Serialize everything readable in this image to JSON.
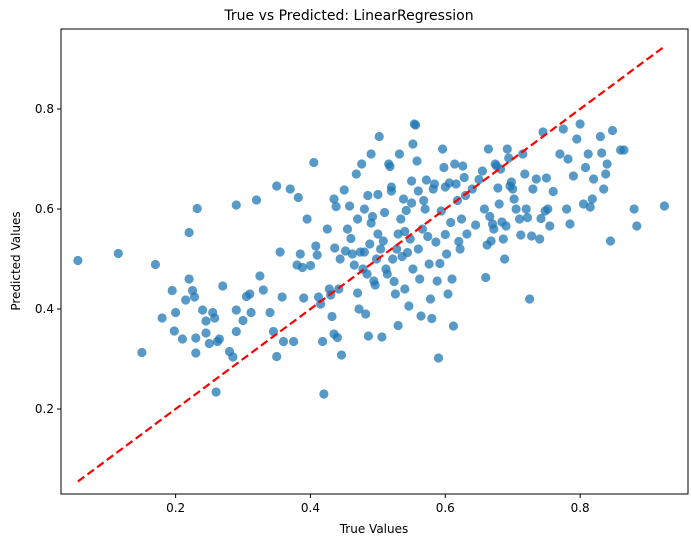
{
  "chart_data": {
    "type": "scatter",
    "title": "True vs Predicted: LinearRegression",
    "xlabel": "True Values",
    "ylabel": "Predicted Values",
    "xlim": [
      0.03,
      0.96
    ],
    "ylim": [
      0.03,
      0.96
    ],
    "xticks": [
      0.2,
      0.4,
      0.6,
      0.8
    ],
    "yticks": [
      0.2,
      0.4,
      0.6,
      0.8
    ],
    "xtick_labels": [
      "0.2",
      "0.4",
      "0.6",
      "0.8"
    ],
    "ytick_labels": [
      "0.2",
      "0.4",
      "0.6",
      "0.8"
    ],
    "grid": false,
    "point_color": "#1f77b4",
    "point_alpha": 0.75,
    "reference_line": {
      "style": "dashed",
      "color": "#ff0000",
      "from": [
        0.055,
        0.055
      ],
      "to": [
        0.925,
        0.925
      ]
    },
    "points": [
      [
        0.055,
        0.497
      ],
      [
        0.115,
        0.511
      ],
      [
        0.15,
        0.313
      ],
      [
        0.17,
        0.489
      ],
      [
        0.18,
        0.382
      ],
      [
        0.195,
        0.437
      ],
      [
        0.198,
        0.356
      ],
      [
        0.2,
        0.393
      ],
      [
        0.21,
        0.34
      ],
      [
        0.215,
        0.418
      ],
      [
        0.22,
        0.553
      ],
      [
        0.22,
        0.46
      ],
      [
        0.225,
        0.437
      ],
      [
        0.228,
        0.424
      ],
      [
        0.23,
        0.312
      ],
      [
        0.23,
        0.342
      ],
      [
        0.232,
        0.601
      ],
      [
        0.24,
        0.398
      ],
      [
        0.245,
        0.376
      ],
      [
        0.245,
        0.352
      ],
      [
        0.25,
        0.331
      ],
      [
        0.255,
        0.393
      ],
      [
        0.258,
        0.382
      ],
      [
        0.26,
        0.234
      ],
      [
        0.262,
        0.335
      ],
      [
        0.265,
        0.34
      ],
      [
        0.27,
        0.446
      ],
      [
        0.28,
        0.315
      ],
      [
        0.285,
        0.304
      ],
      [
        0.29,
        0.608
      ],
      [
        0.29,
        0.398
      ],
      [
        0.29,
        0.355
      ],
      [
        0.3,
        0.377
      ],
      [
        0.305,
        0.425
      ],
      [
        0.31,
        0.43
      ],
      [
        0.312,
        0.393
      ],
      [
        0.32,
        0.618
      ],
      [
        0.325,
        0.466
      ],
      [
        0.33,
        0.438
      ],
      [
        0.34,
        0.393
      ],
      [
        0.345,
        0.355
      ],
      [
        0.35,
        0.305
      ],
      [
        0.35,
        0.646
      ],
      [
        0.355,
        0.514
      ],
      [
        0.358,
        0.424
      ],
      [
        0.36,
        0.335
      ],
      [
        0.37,
        0.64
      ],
      [
        0.375,
        0.335
      ],
      [
        0.38,
        0.488
      ],
      [
        0.382,
        0.623
      ],
      [
        0.385,
        0.51
      ],
      [
        0.388,
        0.483
      ],
      [
        0.39,
        0.422
      ],
      [
        0.395,
        0.58
      ],
      [
        0.4,
        0.487
      ],
      [
        0.405,
        0.693
      ],
      [
        0.408,
        0.526
      ],
      [
        0.41,
        0.508
      ],
      [
        0.412,
        0.424
      ],
      [
        0.415,
        0.41
      ],
      [
        0.418,
        0.335
      ],
      [
        0.42,
        0.23
      ],
      [
        0.425,
        0.56
      ],
      [
        0.428,
        0.44
      ],
      [
        0.43,
        0.428
      ],
      [
        0.432,
        0.385
      ],
      [
        0.435,
        0.35
      ],
      [
        0.435,
        0.62
      ],
      [
        0.436,
        0.522
      ],
      [
        0.438,
        0.605
      ],
      [
        0.44,
        0.343
      ],
      [
        0.442,
        0.44
      ],
      [
        0.444,
        0.5
      ],
      [
        0.446,
        0.308
      ],
      [
        0.45,
        0.638
      ],
      [
        0.452,
        0.516
      ],
      [
        0.455,
        0.56
      ],
      [
        0.458,
        0.606
      ],
      [
        0.46,
        0.541
      ],
      [
        0.462,
        0.51
      ],
      [
        0.465,
        0.488
      ],
      [
        0.468,
        0.67
      ],
      [
        0.47,
        0.432
      ],
      [
        0.47,
        0.58
      ],
      [
        0.472,
        0.4
      ],
      [
        0.474,
        0.514
      ],
      [
        0.476,
        0.69
      ],
      [
        0.478,
        0.48
      ],
      [
        0.48,
        0.514
      ],
      [
        0.48,
        0.6
      ],
      [
        0.482,
        0.39
      ],
      [
        0.484,
        0.47
      ],
      [
        0.486,
        0.346
      ],
      [
        0.488,
        0.53
      ],
      [
        0.49,
        0.572
      ],
      [
        0.49,
        0.71
      ],
      [
        0.492,
        0.585
      ],
      [
        0.494,
        0.456
      ],
      [
        0.496,
        0.448
      ],
      [
        0.498,
        0.5
      ],
      [
        0.5,
        0.55
      ],
      [
        0.5,
        0.629
      ],
      [
        0.502,
        0.745
      ],
      [
        0.504,
        0.52
      ],
      [
        0.506,
        0.344
      ],
      [
        0.508,
        0.536
      ],
      [
        0.51,
        0.593
      ],
      [
        0.512,
        0.48
      ],
      [
        0.514,
        0.47
      ],
      [
        0.516,
        0.69
      ],
      [
        0.518,
        0.685
      ],
      [
        0.52,
        0.644
      ],
      [
        0.522,
        0.5
      ],
      [
        0.524,
        0.455
      ],
      [
        0.526,
        0.43
      ],
      [
        0.528,
        0.52
      ],
      [
        0.53,
        0.55
      ],
      [
        0.53,
        0.367
      ],
      [
        0.532,
        0.71
      ],
      [
        0.534,
        0.58
      ],
      [
        0.536,
        0.505
      ],
      [
        0.538,
        0.62
      ],
      [
        0.54,
        0.555
      ],
      [
        0.54,
        0.44
      ],
      [
        0.542,
        0.597
      ],
      [
        0.544,
        0.513
      ],
      [
        0.546,
        0.406
      ],
      [
        0.548,
        0.54
      ],
      [
        0.55,
        0.656
      ],
      [
        0.55,
        0.612
      ],
      [
        0.552,
        0.48
      ],
      [
        0.552,
        0.73
      ],
      [
        0.554,
        0.77
      ],
      [
        0.556,
        0.768
      ],
      [
        0.558,
        0.696
      ],
      [
        0.56,
        0.636
      ],
      [
        0.56,
        0.52
      ],
      [
        0.562,
        0.46
      ],
      [
        0.564,
        0.386
      ],
      [
        0.566,
        0.56
      ],
      [
        0.568,
        0.617
      ],
      [
        0.57,
        0.6
      ],
      [
        0.572,
        0.658
      ],
      [
        0.574,
        0.545
      ],
      [
        0.576,
        0.49
      ],
      [
        0.578,
        0.42
      ],
      [
        0.58,
        0.381
      ],
      [
        0.582,
        0.64
      ],
      [
        0.584,
        0.65
      ],
      [
        0.586,
        0.534
      ],
      [
        0.588,
        0.456
      ],
      [
        0.59,
        0.302
      ],
      [
        0.592,
        0.491
      ],
      [
        0.594,
        0.596
      ],
      [
        0.596,
        0.72
      ],
      [
        0.598,
        0.683
      ],
      [
        0.6,
        0.549
      ],
      [
        0.6,
        0.644
      ],
      [
        0.602,
        0.51
      ],
      [
        0.604,
        0.43
      ],
      [
        0.606,
        0.652
      ],
      [
        0.608,
        0.573
      ],
      [
        0.61,
        0.46
      ],
      [
        0.612,
        0.366
      ],
      [
        0.614,
        0.69
      ],
      [
        0.616,
        0.65
      ],
      [
        0.618,
        0.617
      ],
      [
        0.62,
        0.535
      ],
      [
        0.622,
        0.52
      ],
      [
        0.624,
        0.58
      ],
      [
        0.626,
        0.686
      ],
      [
        0.628,
        0.663
      ],
      [
        0.63,
        0.627
      ],
      [
        0.632,
        0.55
      ],
      [
        0.64,
        0.64
      ],
      [
        0.645,
        0.568
      ],
      [
        0.65,
        0.659
      ],
      [
        0.655,
        0.676
      ],
      [
        0.658,
        0.6
      ],
      [
        0.66,
        0.463
      ],
      [
        0.662,
        0.528
      ],
      [
        0.664,
        0.72
      ],
      [
        0.666,
        0.585
      ],
      [
        0.668,
        0.536
      ],
      [
        0.67,
        0.57
      ],
      [
        0.672,
        0.56
      ],
      [
        0.674,
        0.69
      ],
      [
        0.676,
        0.686
      ],
      [
        0.678,
        0.642
      ],
      [
        0.68,
        0.61
      ],
      [
        0.682,
        0.68
      ],
      [
        0.684,
        0.574
      ],
      [
        0.686,
        0.54
      ],
      [
        0.688,
        0.5
      ],
      [
        0.69,
        0.566
      ],
      [
        0.692,
        0.72
      ],
      [
        0.694,
        0.702
      ],
      [
        0.696,
        0.646
      ],
      [
        0.698,
        0.654
      ],
      [
        0.7,
        0.64
      ],
      [
        0.702,
        0.62
      ],
      [
        0.705,
        0.6
      ],
      [
        0.71,
        0.58
      ],
      [
        0.712,
        0.548
      ],
      [
        0.715,
        0.71
      ],
      [
        0.718,
        0.67
      ],
      [
        0.72,
        0.6
      ],
      [
        0.722,
        0.583
      ],
      [
        0.725,
        0.42
      ],
      [
        0.728,
        0.546
      ],
      [
        0.73,
        0.64
      ],
      [
        0.735,
        0.66
      ],
      [
        0.74,
        0.54
      ],
      [
        0.742,
        0.581
      ],
      [
        0.745,
        0.754
      ],
      [
        0.748,
        0.596
      ],
      [
        0.75,
        0.662
      ],
      [
        0.752,
        0.6
      ],
      [
        0.755,
        0.566
      ],
      [
        0.76,
        0.635
      ],
      [
        0.77,
        0.71
      ],
      [
        0.775,
        0.76
      ],
      [
        0.78,
        0.6
      ],
      [
        0.782,
        0.7
      ],
      [
        0.785,
        0.57
      ],
      [
        0.79,
        0.666
      ],
      [
        0.795,
        0.74
      ],
      [
        0.8,
        0.77
      ],
      [
        0.805,
        0.61
      ],
      [
        0.808,
        0.683
      ],
      [
        0.812,
        0.71
      ],
      [
        0.815,
        0.604
      ],
      [
        0.818,
        0.62
      ],
      [
        0.82,
        0.66
      ],
      [
        0.83,
        0.745
      ],
      [
        0.832,
        0.712
      ],
      [
        0.835,
        0.64
      ],
      [
        0.838,
        0.67
      ],
      [
        0.84,
        0.69
      ],
      [
        0.845,
        0.536
      ],
      [
        0.848,
        0.757
      ],
      [
        0.86,
        0.718
      ],
      [
        0.865,
        0.718
      ],
      [
        0.88,
        0.6
      ],
      [
        0.884,
        0.566
      ],
      [
        0.925,
        0.606
      ],
      [
        0.52,
        0.636
      ],
      [
        0.485,
        0.627
      ]
    ]
  }
}
